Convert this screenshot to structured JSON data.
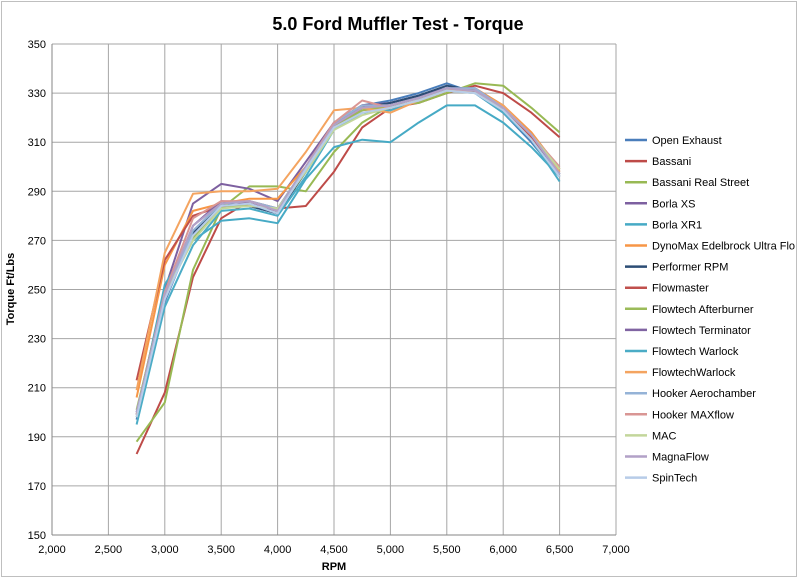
{
  "chart_data": {
    "type": "line",
    "title": "5.0 Ford Muffler Test - Torque",
    "xlabel": "RPM",
    "ylabel": "Torque Ft/Lbs",
    "xlim": [
      2000,
      7000
    ],
    "ylim": [
      150,
      350
    ],
    "x_ticks": [
      2000,
      2500,
      3000,
      3500,
      4000,
      4500,
      5000,
      5500,
      6000,
      6500,
      7000
    ],
    "x_tick_labels": [
      "2,000",
      "2,500",
      "3,000",
      "3,500",
      "4,000",
      "4,500",
      "5,000",
      "5,500",
      "6,000",
      "6,500",
      "7,000"
    ],
    "y_ticks": [
      150,
      170,
      190,
      210,
      230,
      250,
      270,
      290,
      310,
      330,
      350
    ],
    "y_tick_labels": [
      "150",
      "170",
      "190",
      "210",
      "230",
      "250",
      "270",
      "290",
      "310",
      "330",
      "350"
    ],
    "grid": true,
    "legend_position": "right",
    "x": [
      2750,
      3000,
      3250,
      3500,
      3750,
      4000,
      4250,
      4500,
      4750,
      5000,
      5250,
      5500,
      5750,
      6000,
      6250,
      6500
    ],
    "series": [
      {
        "name": "Open Exhaust",
        "color": "#4a7ebb",
        "values": [
          197,
          245,
          273,
          285,
          284,
          281,
          298,
          318,
          325,
          327,
          330,
          334,
          330,
          322,
          310,
          296
        ]
      },
      {
        "name": "Bassani",
        "color": "#be4b48",
        "values": [
          183,
          208,
          255,
          279,
          286,
          283,
          284,
          298,
          316,
          324,
          326,
          330,
          333,
          330,
          322,
          312
        ]
      },
      {
        "name": "Bassani Real Street",
        "color": "#98b954",
        "values": [
          188,
          204,
          258,
          283,
          292,
          292,
          290,
          306,
          318,
          325,
          326,
          330,
          334,
          333,
          324,
          314
        ]
      },
      {
        "name": "Borla XS",
        "color": "#7d60a0",
        "values": [
          200,
          250,
          285,
          293,
          291,
          286,
          302,
          318,
          325,
          326,
          329,
          332,
          331,
          322,
          312,
          296
        ]
      },
      {
        "name": "Borla XR1",
        "color": "#46aac5",
        "values": [
          198,
          252,
          270,
          278,
          279,
          277,
          295,
          308,
          311,
          310,
          318,
          325,
          325,
          318,
          308,
          296
        ]
      },
      {
        "name": "DynoMax Edelbrock Ultra Flo",
        "color": "#f79646",
        "values": [
          206,
          260,
          282,
          285,
          287,
          287,
          300,
          317,
          323,
          324,
          327,
          331,
          332,
          325,
          314,
          299
        ]
      },
      {
        "name": "Performer RPM",
        "color": "#2c4d75",
        "values": [
          199,
          246,
          273,
          284,
          284,
          281,
          298,
          317,
          324,
          326,
          329,
          333,
          331,
          323,
          311,
          297
        ]
      },
      {
        "name": "Flowmaster",
        "color": "#c0504d",
        "values": [
          213,
          262,
          280,
          284,
          284,
          283,
          300,
          318,
          325,
          325,
          328,
          331,
          331,
          323,
          312,
          298
        ]
      },
      {
        "name": "Flowtech Afterburner",
        "color": "#9bbb59",
        "values": [
          201,
          248,
          271,
          283,
          285,
          282,
          298,
          316,
          323,
          325,
          328,
          332,
          331,
          324,
          313,
          299
        ]
      },
      {
        "name": "Flowtech Terminator",
        "color": "#8064a2",
        "values": [
          199,
          248,
          276,
          286,
          285,
          282,
          300,
          318,
          325,
          325,
          328,
          332,
          332,
          324,
          313,
          297
        ]
      },
      {
        "name": "Flowtech Warlock",
        "color": "#4bacc6",
        "values": [
          195,
          243,
          268,
          282,
          283,
          280,
          296,
          315,
          322,
          323,
          327,
          331,
          330,
          322,
          311,
          294
        ]
      },
      {
        "name": "FlowtechWarlock",
        "color": "#f4a460",
        "values": [
          209,
          265,
          289,
          290,
          290,
          291,
          306,
          323,
          324,
          322,
          327,
          331,
          331,
          325,
          313,
          298
        ]
      },
      {
        "name": "Hooker Aerochamber",
        "color": "#95b3d7",
        "values": [
          200,
          247,
          274,
          285,
          286,
          283,
          300,
          318,
          325,
          325,
          328,
          332,
          332,
          324,
          313,
          297
        ]
      },
      {
        "name": "Hooker MAXflow",
        "color": "#d99694",
        "values": [
          199,
          249,
          279,
          286,
          286,
          282,
          300,
          318,
          327,
          324,
          327,
          331,
          331,
          324,
          313,
          300
        ]
      },
      {
        "name": "MAC",
        "color": "#c3d69b",
        "values": [
          198,
          248,
          270,
          283,
          284,
          283,
          298,
          315,
          321,
          324,
          327,
          331,
          330,
          324,
          313,
          299
        ]
      },
      {
        "name": "MagnaFlow",
        "color": "#b2a1c7",
        "values": [
          200,
          248,
          276,
          285,
          286,
          282,
          300,
          317,
          324,
          325,
          328,
          332,
          331,
          324,
          313,
          297
        ]
      },
      {
        "name": "SpinTech",
        "color": "#b7cce8",
        "values": [
          198,
          246,
          272,
          284,
          285,
          281,
          299,
          316,
          322,
          324,
          327,
          331,
          330,
          323,
          311,
          296
        ]
      }
    ]
  }
}
